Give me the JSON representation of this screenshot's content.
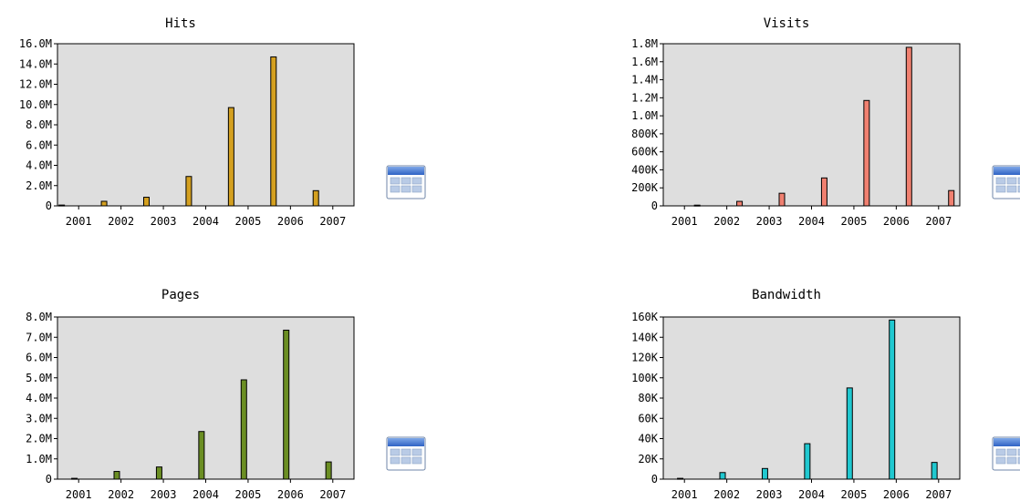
{
  "chart_data": [
    {
      "type": "bar",
      "title": "Hits",
      "categories": [
        "2001",
        "2002",
        "2003",
        "2004",
        "2005",
        "2006",
        "2007"
      ],
      "values": [
        80000,
        450000,
        850000,
        2900000,
        9700000,
        14700000,
        1500000
      ],
      "ylim": [
        0,
        16000000
      ],
      "yticks": [
        0,
        2000000,
        4000000,
        6000000,
        8000000,
        10000000,
        12000000,
        14000000,
        16000000
      ],
      "ytick_labels": [
        "0",
        "2.0M",
        "4.0M",
        "6.0M",
        "8.0M",
        "10.0M",
        "12.0M",
        "14.0M",
        "16.0M"
      ],
      "bar_offset": -0.4,
      "color": "#d4a020",
      "grid": false,
      "table_icon": "table-icon"
    },
    {
      "type": "bar",
      "title": "Visits",
      "categories": [
        "2001",
        "2002",
        "2003",
        "2004",
        "2005",
        "2006",
        "2007"
      ],
      "values": [
        8000,
        50000,
        140000,
        310000,
        1170000,
        1760000,
        170000
      ],
      "ylim": [
        0,
        1800000
      ],
      "yticks": [
        0,
        200000,
        400000,
        600000,
        800000,
        1000000,
        1200000,
        1400000,
        1600000,
        1800000
      ],
      "ytick_labels": [
        "0",
        "200K",
        "400K",
        "600K",
        "800K",
        "1.0M",
        "1.2M",
        "1.4M",
        "1.6M",
        "1.8M"
      ],
      "bar_offset": 0.3,
      "color": "#f08070",
      "grid": false,
      "table_icon": "table-icon"
    },
    {
      "type": "bar",
      "title": "Pages",
      "categories": [
        "2001",
        "2002",
        "2003",
        "2004",
        "2005",
        "2006",
        "2007"
      ],
      "values": [
        40000,
        380000,
        600000,
        2350000,
        4900000,
        7350000,
        850000
      ],
      "ylim": [
        0,
        8000000
      ],
      "yticks": [
        0,
        1000000,
        2000000,
        3000000,
        4000000,
        5000000,
        6000000,
        7000000,
        8000000
      ],
      "ytick_labels": [
        "0",
        "1.0M",
        "2.0M",
        "3.0M",
        "4.0M",
        "5.0M",
        "6.0M",
        "7.0M",
        "8.0M"
      ],
      "bar_offset": -0.1,
      "color": "#6b8e23",
      "grid": false,
      "table_icon": "table-icon"
    },
    {
      "type": "bar",
      "title": "Bandwidth",
      "categories": [
        "2001",
        "2002",
        "2003",
        "2004",
        "2005",
        "2006",
        "2007"
      ],
      "values": [
        800,
        6500,
        10500,
        35000,
        90000,
        157000,
        16500
      ],
      "ylim": [
        0,
        160000
      ],
      "yticks": [
        0,
        20000,
        40000,
        60000,
        80000,
        100000,
        120000,
        140000,
        160000
      ],
      "ytick_labels": [
        "0",
        "20K",
        "40K",
        "60K",
        "80K",
        "100K",
        "120K",
        "140K",
        "160K"
      ],
      "bar_offset": -0.1,
      "color": "#20c8d0",
      "grid": false,
      "table_icon": "table-icon"
    }
  ]
}
